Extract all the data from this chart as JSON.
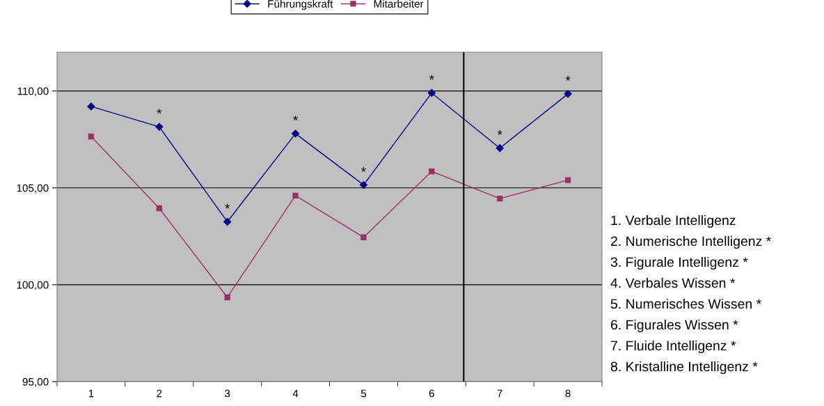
{
  "chart_data": {
    "type": "line",
    "x": [
      1,
      2,
      3,
      4,
      5,
      6,
      7,
      8
    ],
    "series": [
      {
        "name": "Führungskraft",
        "color": "#000080",
        "marker": "diamond",
        "values": [
          109.2,
          108.15,
          103.25,
          107.8,
          105.15,
          109.9,
          107.05,
          109.85
        ]
      },
      {
        "name": "Mitarbeiter",
        "color": "#993366",
        "marker": "square",
        "values": [
          107.65,
          103.95,
          99.35,
          104.6,
          102.45,
          105.85,
          104.45,
          105.4
        ]
      }
    ],
    "xlim": [
      0.5,
      8.5
    ],
    "xticks": [
      {
        "value": 0.5,
        "label": null
      },
      1,
      {
        "value": 1.5,
        "label": null
      },
      2,
      {
        "value": 2.5,
        "label": null
      },
      3,
      {
        "value": 3.5,
        "label": null
      },
      4,
      {
        "value": 4.5,
        "label": null
      },
      5,
      {
        "value": 5.5,
        "label": null
      },
      6,
      {
        "value": 6.5,
        "label": null
      },
      7,
      {
        "value": 7.5,
        "label": null
      },
      8,
      {
        "value": 8.5,
        "label": null
      }
    ],
    "ylim": [
      95,
      112
    ],
    "yticks": [
      {
        "value": 95,
        "label": "95,00"
      },
      {
        "value": 100,
        "label": "100,00"
      },
      {
        "value": 105,
        "label": "105,00"
      },
      {
        "value": 110,
        "label": "110,00"
      }
    ],
    "grid": "y",
    "legend": "top",
    "line_style": "solid",
    "ref_lines": [
      {
        "axis": "x",
        "value": 6.47,
        "color": "#000000"
      }
    ],
    "annotations": [
      {
        "text": "*",
        "x": 2,
        "y": 108.15
      },
      {
        "text": "*",
        "x": 3,
        "y": 103.25
      },
      {
        "text": "*",
        "x": 4,
        "y": 107.8
      },
      {
        "text": "*",
        "x": 5,
        "y": 105.15
      },
      {
        "text": "*",
        "x": 6,
        "y": 109.9
      },
      {
        "text": "*",
        "x": 7,
        "y": 107.05
      },
      {
        "text": "*",
        "x": 8,
        "y": 109.85
      },
      "1. Verbale Intelligenz",
      "2. Numerische Intelligenz *",
      "3. Figurale Intelligenz *",
      "4. Verbales Wissen *",
      "5. Numerisches Wissen *",
      "6. Figurales Wissen *",
      "7. Fluide Intelligenz *",
      "8. Kristalline Intelligenz *"
    ]
  }
}
